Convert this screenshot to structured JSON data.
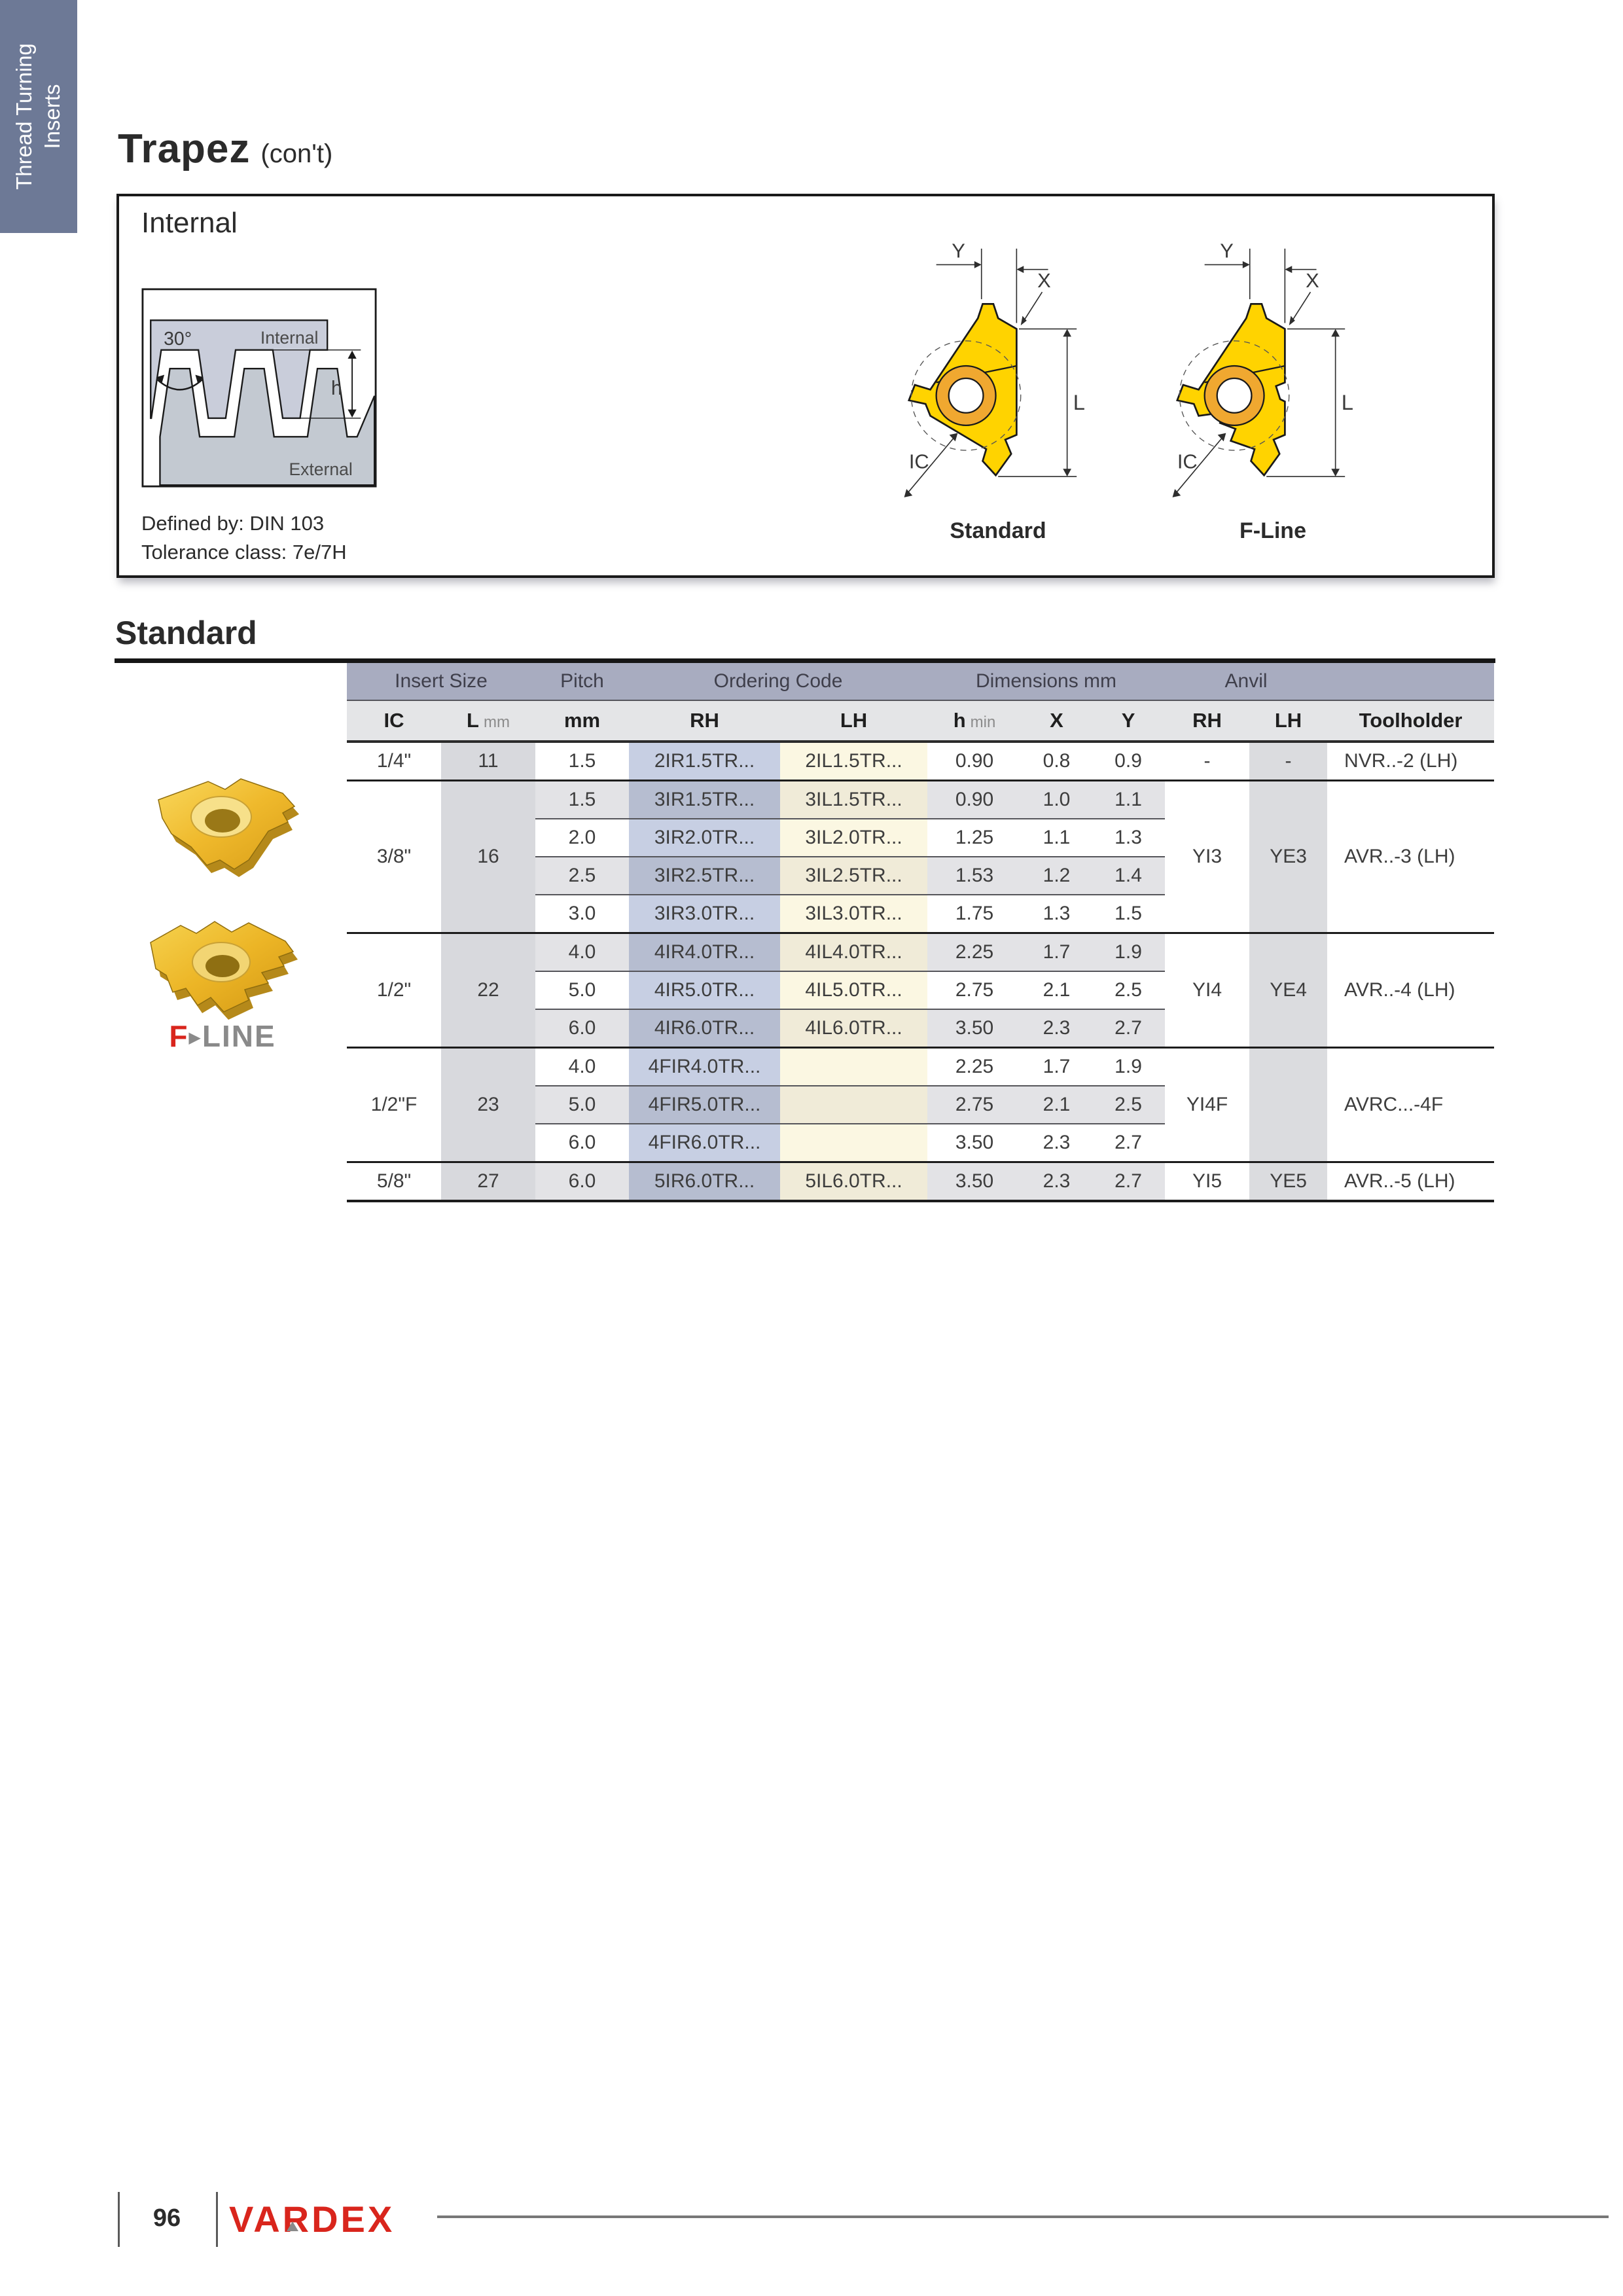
{
  "sidebar": {
    "line1": "Thread Turning",
    "line2": "Inserts"
  },
  "header": {
    "title": "Trapez",
    "subtitle": "(con't)"
  },
  "internal_box": {
    "title": "Internal",
    "defined_by": "Defined by: DIN 103",
    "tolerance": "Tolerance class: 7e/7H",
    "thread_diagram": {
      "angle": "30°",
      "internal": "Internal",
      "external": "External",
      "h": "h"
    },
    "dims": {
      "y": "Y",
      "x": "X",
      "l": "L",
      "ic": "IC"
    },
    "standard_label": "Standard",
    "fline_label": "F-Line"
  },
  "section_title": "Standard",
  "table": {
    "group_headers": [
      {
        "label": "Insert Size",
        "span": 2
      },
      {
        "label": "Pitch",
        "span": 1
      },
      {
        "label": "Ordering Code",
        "span": 2
      },
      {
        "label": "Dimensions mm",
        "span": 3
      },
      {
        "label": "Anvil",
        "span": 2
      },
      {
        "label": "",
        "span": 1
      }
    ],
    "col_headers": [
      {
        "main": "IC",
        "sub": ""
      },
      {
        "main": "L",
        "sub": "mm"
      },
      {
        "main": "mm",
        "sub": ""
      },
      {
        "main": "RH",
        "sub": ""
      },
      {
        "main": "LH",
        "sub": ""
      },
      {
        "main": "h",
        "sub": "min"
      },
      {
        "main": "X",
        "sub": ""
      },
      {
        "main": "Y",
        "sub": ""
      },
      {
        "main": "RH",
        "sub": ""
      },
      {
        "main": "LH",
        "sub": ""
      },
      {
        "main": "Toolholder",
        "sub": ""
      }
    ],
    "groups": [
      {
        "ic": "1/4\"",
        "l": "11",
        "anvil_rh": "-",
        "anvil_lh": "-",
        "toolholder": "NVR..-2 (LH)",
        "rows": [
          {
            "pitch": "1.5",
            "rh": "2IR1.5TR...",
            "lh": "2IL1.5TR...",
            "h": "0.90",
            "x": "0.8",
            "y": "0.9"
          }
        ]
      },
      {
        "ic": "3/8\"",
        "l": "16",
        "anvil_rh": "YI3",
        "anvil_lh": "YE3",
        "toolholder": "AVR..-3 (LH)",
        "rows": [
          {
            "pitch": "1.5",
            "rh": "3IR1.5TR...",
            "lh": "3IL1.5TR...",
            "h": "0.90",
            "x": "1.0",
            "y": "1.1"
          },
          {
            "pitch": "2.0",
            "rh": "3IR2.0TR...",
            "lh": "3IL2.0TR...",
            "h": "1.25",
            "x": "1.1",
            "y": "1.3"
          },
          {
            "pitch": "2.5",
            "rh": "3IR2.5TR...",
            "lh": "3IL2.5TR...",
            "h": "1.53",
            "x": "1.2",
            "y": "1.4"
          },
          {
            "pitch": "3.0",
            "rh": "3IR3.0TR...",
            "lh": "3IL3.0TR...",
            "h": "1.75",
            "x": "1.3",
            "y": "1.5"
          }
        ]
      },
      {
        "ic": "1/2\"",
        "l": "22",
        "anvil_rh": "YI4",
        "anvil_lh": "YE4",
        "toolholder": "AVR..-4 (LH)",
        "rows": [
          {
            "pitch": "4.0",
            "rh": "4IR4.0TR...",
            "lh": "4IL4.0TR...",
            "h": "2.25",
            "x": "1.7",
            "y": "1.9"
          },
          {
            "pitch": "5.0",
            "rh": "4IR5.0TR...",
            "lh": "4IL5.0TR...",
            "h": "2.75",
            "x": "2.1",
            "y": "2.5"
          },
          {
            "pitch": "6.0",
            "rh": "4IR6.0TR...",
            "lh": "4IL6.0TR...",
            "h": "3.50",
            "x": "2.3",
            "y": "2.7"
          }
        ]
      },
      {
        "ic": "1/2\"F",
        "l": "23",
        "anvil_rh": "YI4F",
        "anvil_lh": "",
        "toolholder": "AVRC...-4F",
        "rows": [
          {
            "pitch": "4.0",
            "rh": "4FIR4.0TR...",
            "lh": "",
            "h": "2.25",
            "x": "1.7",
            "y": "1.9"
          },
          {
            "pitch": "5.0",
            "rh": "4FIR5.0TR...",
            "lh": "",
            "h": "2.75",
            "x": "2.1",
            "y": "2.5"
          },
          {
            "pitch": "6.0",
            "rh": "4FIR6.0TR...",
            "lh": "",
            "h": "3.50",
            "x": "2.3",
            "y": "2.7"
          }
        ]
      },
      {
        "ic": "5/8\"",
        "l": "27",
        "anvil_rh": "YI5",
        "anvil_lh": "YE5",
        "toolholder": "AVR..-5 (LH)",
        "rows": [
          {
            "pitch": "6.0",
            "rh": "5IR6.0TR...",
            "lh": "5IL6.0TR...",
            "h": "3.50",
            "x": "2.3",
            "y": "2.7"
          }
        ]
      }
    ]
  },
  "fline_logo": {
    "f": "F",
    "arrow": "▶",
    "line": "LINE"
  },
  "footer": {
    "page_number": "96",
    "brand": "VARDEX"
  },
  "colors": {
    "sidebar": "#6d7996",
    "header_group": "#a8acc0",
    "header_sub": "#e4e5e7",
    "stripe": "#e3e3e6",
    "l_col": "#d8d9dd",
    "anvil_lh_col": "#dbdcdf",
    "rh_col": "#c7cfe3",
    "rh_col_gray": "#b6bdd0",
    "lh_col": "#fbf7e2",
    "lh_col_gray": "#f0ebd8",
    "accent_red": "#d9251c",
    "insert_gold": "#ffd300",
    "diagram_internal": "#c9cdda",
    "diagram_external": "#c3c9d1"
  }
}
